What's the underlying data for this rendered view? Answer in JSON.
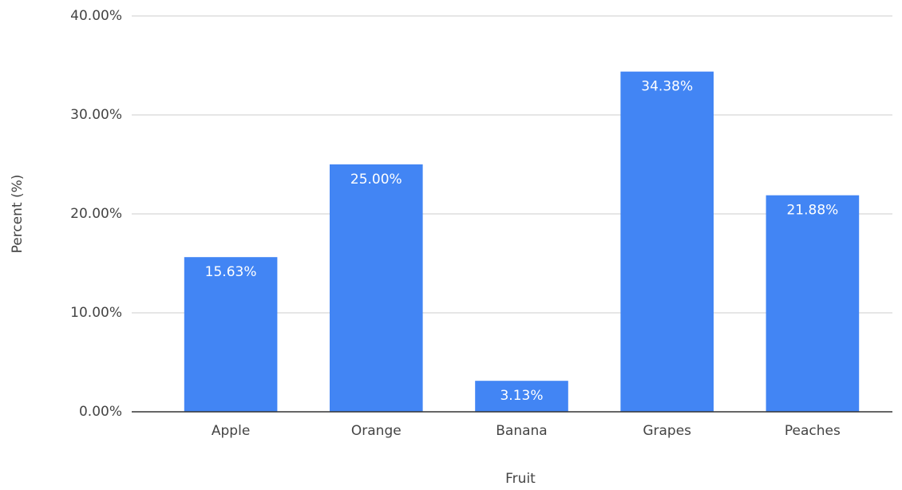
{
  "chart_data": {
    "type": "bar",
    "categories": [
      "Apple",
      "Orange",
      "Banana",
      "Grapes",
      "Peaches"
    ],
    "values": [
      15.63,
      25,
      3.13,
      34.38,
      21.88
    ],
    "value_labels": [
      "15.63%",
      "25.00%",
      "3.13%",
      "34.38%",
      "21.88%"
    ],
    "color": "#4285f4",
    "xlabel": "Fruit",
    "ylabel": "Percent (%)",
    "ylim": [
      0,
      40
    ],
    "yticks": [
      {
        "value": 0,
        "label": "0.00%"
      },
      {
        "value": 10,
        "label": "10.00%"
      },
      {
        "value": 20,
        "label": "20.00%"
      },
      {
        "value": 30,
        "label": "30.00%"
      },
      {
        "value": 40,
        "label": "40.00%"
      }
    ],
    "grid": true
  }
}
